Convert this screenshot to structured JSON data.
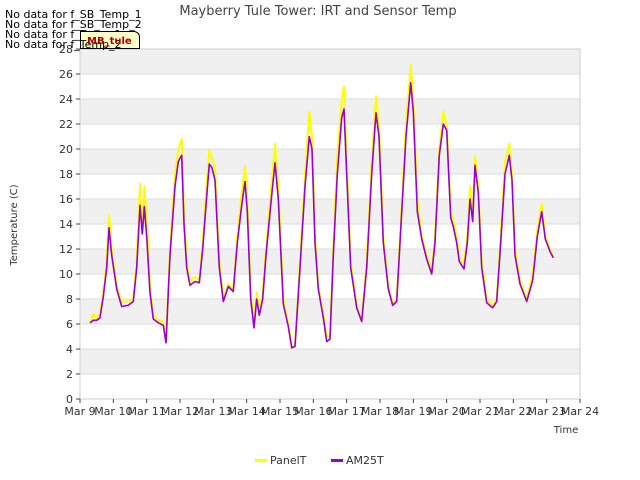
{
  "no_data_messages": [
    "No data for f_SB_Temp_1",
    "No data for f_SB_Temp_2",
    "No data for f_Temp_1",
    "No data for f_Temp_2"
  ],
  "tag_label": "MB_tule",
  "colors": {
    "panel": "#ffff00",
    "am25t": "#9900cc",
    "band": "#f0f0f0",
    "grid": "#dddddd"
  },
  "chart_data": {
    "type": "line",
    "title": "Mayberry Tule Tower: IRT and Sensor Temp",
    "xlabel": "Time",
    "ylabel": "Temperature (C)",
    "ylim": [
      0,
      28
    ],
    "yticks": [
      0,
      2,
      4,
      6,
      8,
      10,
      12,
      14,
      16,
      18,
      20,
      22,
      24,
      26,
      28
    ],
    "xlim": [
      9,
      24
    ],
    "xticks": [
      {
        "value": 9,
        "label": "Mar 9"
      },
      {
        "value": 10,
        "label": "Mar 10"
      },
      {
        "value": 11,
        "label": "Mar 11"
      },
      {
        "value": 12,
        "label": "Mar 12"
      },
      {
        "value": 13,
        "label": "Mar 13"
      },
      {
        "value": 14,
        "label": "Mar 14"
      },
      {
        "value": 15,
        "label": "Mar 15"
      },
      {
        "value": 16,
        "label": "Mar 16"
      },
      {
        "value": 17,
        "label": "Mar 17"
      },
      {
        "value": 18,
        "label": "Mar 18"
      },
      {
        "value": 19,
        "label": "Mar 19"
      },
      {
        "value": 20,
        "label": "Mar 20"
      },
      {
        "value": 21,
        "label": "Mar 21"
      },
      {
        "value": 22,
        "label": "Mar 22"
      },
      {
        "value": 23,
        "label": "Mar 23"
      },
      {
        "value": 24,
        "label": "Mar 24"
      }
    ],
    "legend": [
      {
        "name": "PanelT",
        "color": "#ffff00"
      },
      {
        "name": "AM25T",
        "color": "#9900cc"
      }
    ],
    "series": [
      {
        "name": "PanelT",
        "points": [
          [
            9.3,
            6.1
          ],
          [
            9.4,
            6.8
          ],
          [
            9.5,
            6.5
          ],
          [
            9.6,
            6.9
          ],
          [
            9.7,
            8.5
          ],
          [
            9.8,
            11.0
          ],
          [
            9.87,
            14.7
          ],
          [
            9.95,
            12.0
          ],
          [
            10.1,
            9.0
          ],
          [
            10.25,
            7.8
          ],
          [
            10.45,
            7.8
          ],
          [
            10.6,
            8.0
          ],
          [
            10.7,
            11.0
          ],
          [
            10.8,
            17.2
          ],
          [
            10.87,
            14.0
          ],
          [
            10.93,
            17.0
          ],
          [
            11.0,
            14.5
          ],
          [
            11.1,
            9.0
          ],
          [
            11.2,
            6.7
          ],
          [
            11.35,
            6.3
          ],
          [
            11.5,
            6.2
          ],
          [
            11.58,
            4.7
          ],
          [
            11.7,
            12.0
          ],
          [
            11.85,
            18.0
          ],
          [
            11.95,
            20.0
          ],
          [
            12.05,
            20.8
          ],
          [
            12.12,
            15.0
          ],
          [
            12.2,
            11.0
          ],
          [
            12.3,
            9.4
          ],
          [
            12.45,
            9.8
          ],
          [
            12.58,
            9.5
          ],
          [
            12.68,
            12.5
          ],
          [
            12.78,
            16.5
          ],
          [
            12.88,
            19.9
          ],
          [
            12.96,
            19.3
          ],
          [
            13.05,
            18.5
          ],
          [
            13.18,
            11.0
          ],
          [
            13.3,
            8.0
          ],
          [
            13.45,
            9.2
          ],
          [
            13.6,
            8.8
          ],
          [
            13.72,
            13.0
          ],
          [
            13.85,
            16.5
          ],
          [
            13.95,
            18.6
          ],
          [
            14.02,
            16.0
          ],
          [
            14.12,
            8.5
          ],
          [
            14.22,
            6.0
          ],
          [
            14.3,
            8.5
          ],
          [
            14.38,
            7.0
          ],
          [
            14.48,
            8.5
          ],
          [
            14.58,
            12.0
          ],
          [
            14.72,
            16.5
          ],
          [
            14.85,
            20.4
          ],
          [
            14.95,
            17.0
          ],
          [
            15.1,
            8.0
          ],
          [
            15.25,
            6.0
          ],
          [
            15.35,
            4.2
          ],
          [
            15.45,
            4.3
          ],
          [
            15.6,
            11.0
          ],
          [
            15.75,
            18.0
          ],
          [
            15.88,
            23.0
          ],
          [
            15.96,
            21.0
          ],
          [
            16.05,
            13.0
          ],
          [
            16.15,
            9.0
          ],
          [
            16.3,
            6.8
          ],
          [
            16.4,
            5.0
          ],
          [
            16.5,
            5.0
          ],
          [
            16.6,
            12.0
          ],
          [
            16.72,
            19.5
          ],
          [
            16.85,
            24.0
          ],
          [
            16.92,
            25.0
          ],
          [
            17.0,
            19.0
          ],
          [
            17.12,
            11.0
          ],
          [
            17.3,
            7.5
          ],
          [
            17.45,
            6.3
          ],
          [
            17.6,
            11.0
          ],
          [
            17.75,
            19.0
          ],
          [
            17.88,
            24.2
          ],
          [
            17.97,
            22.0
          ],
          [
            18.1,
            13.0
          ],
          [
            18.25,
            9.0
          ],
          [
            18.38,
            7.6
          ],
          [
            18.5,
            8.0
          ],
          [
            18.62,
            14.0
          ],
          [
            18.78,
            22.0
          ],
          [
            18.92,
            26.7
          ],
          [
            19.0,
            24.0
          ],
          [
            19.12,
            16.0
          ],
          [
            19.25,
            13.0
          ],
          [
            19.4,
            11.5
          ],
          [
            19.55,
            10.2
          ],
          [
            19.65,
            13.0
          ],
          [
            19.78,
            20.0
          ],
          [
            19.9,
            23.0
          ],
          [
            20.0,
            22.0
          ],
          [
            20.12,
            15.0
          ],
          [
            20.2,
            14.3
          ],
          [
            20.3,
            13.0
          ],
          [
            20.38,
            11.3
          ],
          [
            20.52,
            10.8
          ],
          [
            20.62,
            13.0
          ],
          [
            20.7,
            17.0
          ],
          [
            20.78,
            14.5
          ],
          [
            20.85,
            19.4
          ],
          [
            20.95,
            17.0
          ],
          [
            21.05,
            11.0
          ],
          [
            21.2,
            8.0
          ],
          [
            21.38,
            7.5
          ],
          [
            21.5,
            8.0
          ],
          [
            21.62,
            13.0
          ],
          [
            21.75,
            19.0
          ],
          [
            21.88,
            20.4
          ],
          [
            21.96,
            18.0
          ],
          [
            22.05,
            12.0
          ],
          [
            22.2,
            9.5
          ],
          [
            22.4,
            8.0
          ],
          [
            22.58,
            10.0
          ],
          [
            22.72,
            13.5
          ],
          [
            22.85,
            15.6
          ],
          [
            22.96,
            13.0
          ],
          [
            23.1,
            12.0
          ],
          [
            23.2,
            11.3
          ]
        ]
      },
      {
        "name": "AM25T",
        "points": [
          [
            9.3,
            6.1
          ],
          [
            9.4,
            6.3
          ],
          [
            9.5,
            6.3
          ],
          [
            9.6,
            6.5
          ],
          [
            9.7,
            8.2
          ],
          [
            9.8,
            10.5
          ],
          [
            9.87,
            13.7
          ],
          [
            9.95,
            11.5
          ],
          [
            10.1,
            8.8
          ],
          [
            10.25,
            7.4
          ],
          [
            10.45,
            7.5
          ],
          [
            10.6,
            7.8
          ],
          [
            10.7,
            10.5
          ],
          [
            10.8,
            15.5
          ],
          [
            10.87,
            13.2
          ],
          [
            10.93,
            15.4
          ],
          [
            11.0,
            13.0
          ],
          [
            11.1,
            8.5
          ],
          [
            11.2,
            6.4
          ],
          [
            11.35,
            6.1
          ],
          [
            11.5,
            5.9
          ],
          [
            11.58,
            4.5
          ],
          [
            11.7,
            11.5
          ],
          [
            11.85,
            17.0
          ],
          [
            11.95,
            19.0
          ],
          [
            12.05,
            19.5
          ],
          [
            12.12,
            14.0
          ],
          [
            12.2,
            10.5
          ],
          [
            12.3,
            9.1
          ],
          [
            12.45,
            9.4
          ],
          [
            12.58,
            9.3
          ],
          [
            12.68,
            12.0
          ],
          [
            12.78,
            15.5
          ],
          [
            12.88,
            18.8
          ],
          [
            12.96,
            18.5
          ],
          [
            13.05,
            17.5
          ],
          [
            13.18,
            10.5
          ],
          [
            13.3,
            7.8
          ],
          [
            13.45,
            9.0
          ],
          [
            13.6,
            8.6
          ],
          [
            13.72,
            12.5
          ],
          [
            13.85,
            15.5
          ],
          [
            13.95,
            17.4
          ],
          [
            14.02,
            15.0
          ],
          [
            14.12,
            8.0
          ],
          [
            14.22,
            5.7
          ],
          [
            14.3,
            8.0
          ],
          [
            14.38,
            6.7
          ],
          [
            14.48,
            8.0
          ],
          [
            14.58,
            11.5
          ],
          [
            14.72,
            15.5
          ],
          [
            14.85,
            18.9
          ],
          [
            14.95,
            16.0
          ],
          [
            15.1,
            7.6
          ],
          [
            15.25,
            5.8
          ],
          [
            15.35,
            4.1
          ],
          [
            15.45,
            4.2
          ],
          [
            15.6,
            10.5
          ],
          [
            15.75,
            17.0
          ],
          [
            15.88,
            21.0
          ],
          [
            15.96,
            20.0
          ],
          [
            16.05,
            12.5
          ],
          [
            16.15,
            8.8
          ],
          [
            16.3,
            6.5
          ],
          [
            16.4,
            4.6
          ],
          [
            16.5,
            4.8
          ],
          [
            16.6,
            11.5
          ],
          [
            16.72,
            18.0
          ],
          [
            16.85,
            22.5
          ],
          [
            16.92,
            23.2
          ],
          [
            17.0,
            18.0
          ],
          [
            17.12,
            10.5
          ],
          [
            17.3,
            7.3
          ],
          [
            17.45,
            6.2
          ],
          [
            17.6,
            10.5
          ],
          [
            17.75,
            18.0
          ],
          [
            17.88,
            22.9
          ],
          [
            17.97,
            21.0
          ],
          [
            18.1,
            12.5
          ],
          [
            18.25,
            8.8
          ],
          [
            18.38,
            7.5
          ],
          [
            18.5,
            7.8
          ],
          [
            18.62,
            13.5
          ],
          [
            18.78,
            21.0
          ],
          [
            18.92,
            25.3
          ],
          [
            19.0,
            23.0
          ],
          [
            19.12,
            15.0
          ],
          [
            19.25,
            12.8
          ],
          [
            19.4,
            11.2
          ],
          [
            19.55,
            10.0
          ],
          [
            19.65,
            12.5
          ],
          [
            19.78,
            19.5
          ],
          [
            19.9,
            22.0
          ],
          [
            20.0,
            21.5
          ],
          [
            20.12,
            14.5
          ],
          [
            20.2,
            13.8
          ],
          [
            20.3,
            12.5
          ],
          [
            20.38,
            11.0
          ],
          [
            20.52,
            10.4
          ],
          [
            20.62,
            12.5
          ],
          [
            20.7,
            16.0
          ],
          [
            20.78,
            14.2
          ],
          [
            20.85,
            18.7
          ],
          [
            20.95,
            16.5
          ],
          [
            21.05,
            10.5
          ],
          [
            21.2,
            7.7
          ],
          [
            21.38,
            7.3
          ],
          [
            21.5,
            7.8
          ],
          [
            21.62,
            12.5
          ],
          [
            21.75,
            18.0
          ],
          [
            21.88,
            19.5
          ],
          [
            21.96,
            17.5
          ],
          [
            22.05,
            11.5
          ],
          [
            22.2,
            9.2
          ],
          [
            22.4,
            7.8
          ],
          [
            22.58,
            9.5
          ],
          [
            22.72,
            13.0
          ],
          [
            22.85,
            15.0
          ],
          [
            22.96,
            12.8
          ],
          [
            23.1,
            11.8
          ],
          [
            23.2,
            11.3
          ]
        ]
      }
    ]
  }
}
